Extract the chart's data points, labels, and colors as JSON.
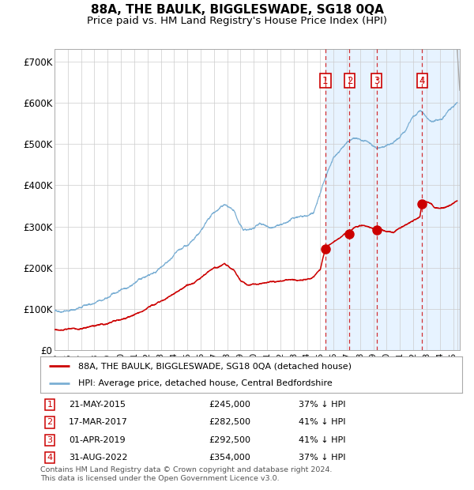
{
  "title": "88A, THE BAULK, BIGGLESWADE, SG18 0QA",
  "subtitle": "Price paid vs. HM Land Registry's House Price Index (HPI)",
  "title_fontsize": 11,
  "subtitle_fontsize": 9.5,
  "ylim": [
    0,
    730000
  ],
  "yticks": [
    0,
    100000,
    200000,
    300000,
    400000,
    500000,
    600000,
    700000
  ],
  "ytick_labels": [
    "£0",
    "£100K",
    "£200K",
    "£300K",
    "£400K",
    "£500K",
    "£600K",
    "£700K"
  ],
  "xlim_start": 1995.0,
  "xlim_end": 2025.5,
  "background_color": "#ffffff",
  "plot_bg_color": "#ffffff",
  "grid_color": "#cccccc",
  "hpi_line_color": "#7bafd4",
  "price_line_color": "#cc0000",
  "shade_color": "#ddeeff",
  "vline_color": "#cc0000",
  "purchase_dates": [
    2015.386,
    2017.204,
    2019.249,
    2022.662
  ],
  "purchase_prices": [
    245000,
    282500,
    292500,
    354000
  ],
  "purchase_labels": [
    "1",
    "2",
    "3",
    "4"
  ],
  "legend_line_label": "88A, THE BAULK, BIGGLESWADE, SG18 0QA (detached house)",
  "legend_hpi_label": "HPI: Average price, detached house, Central Bedfordshire",
  "table_entries": [
    {
      "num": "1",
      "date": "21-MAY-2015",
      "price": "£245,000",
      "pct": "37% ↓ HPI"
    },
    {
      "num": "2",
      "date": "17-MAR-2017",
      "price": "£282,500",
      "pct": "41% ↓ HPI"
    },
    {
      "num": "3",
      "date": "01-APR-2019",
      "price": "£292,500",
      "pct": "41% ↓ HPI"
    },
    {
      "num": "4",
      "date": "31-AUG-2022",
      "price": "£354,000",
      "pct": "37% ↓ HPI"
    }
  ],
  "footnote": "Contains HM Land Registry data © Crown copyright and database right 2024.\nThis data is licensed under the Open Government Licence v3.0."
}
